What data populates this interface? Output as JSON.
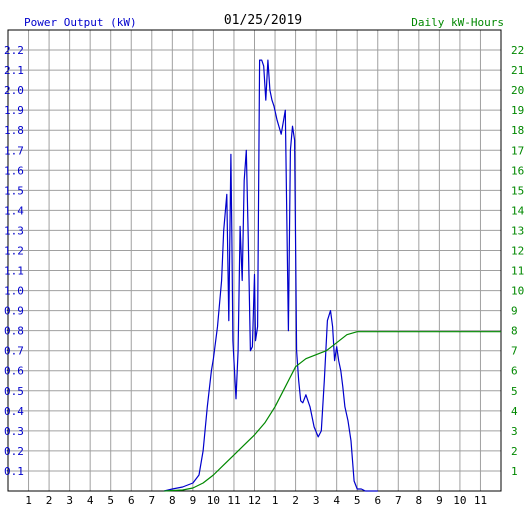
{
  "chart_data": {
    "type": "line",
    "title": "01/25/2019",
    "ylabel_left": "Power Output (kW)",
    "ylabel_right": "Daily kW-Hours",
    "colors": {
      "power": "#0000cc",
      "energy": "#008800",
      "grid": "#a0a0a0",
      "frame": "#000000"
    },
    "grid": true,
    "x_ticks": [
      "1",
      "2",
      "3",
      "4",
      "5",
      "6",
      "7",
      "8",
      "9",
      "10",
      "11",
      "12",
      "1",
      "2",
      "3",
      "4",
      "5",
      "6",
      "7",
      "8",
      "9",
      "10",
      "11"
    ],
    "xlim_hours": [
      0,
      24
    ],
    "ylim_left": [
      0,
      2.3
    ],
    "left_ticks": [
      "0.1",
      "0.2",
      "0.3",
      "0.4",
      "0.5",
      "0.6",
      "0.7",
      "0.8",
      "0.9",
      "1.0",
      "1.1",
      "1.2",
      "1.3",
      "1.4",
      "1.5",
      "1.6",
      "1.7",
      "1.8",
      "1.9",
      "2.0",
      "2.1",
      "2.2"
    ],
    "ylim_right": [
      0,
      23
    ],
    "right_ticks": [
      "1",
      "2",
      "3",
      "4",
      "5",
      "6",
      "7",
      "8",
      "9",
      "10",
      "11",
      "12",
      "13",
      "14",
      "15",
      "16",
      "17",
      "18",
      "19",
      "20",
      "21",
      "22"
    ],
    "series": [
      {
        "axis": "left",
        "hours": [
          7.6,
          8.0,
          8.5,
          9.0,
          9.3,
          9.5,
          9.7,
          9.9,
          10.0,
          10.2,
          10.4,
          10.5,
          10.65,
          10.75,
          10.85,
          10.9,
          10.95,
          11.1,
          11.2,
          11.3,
          11.4,
          11.5,
          11.6,
          11.7,
          11.8,
          11.9,
          12.0,
          12.05,
          12.15,
          12.25,
          12.35,
          12.45,
          12.55,
          12.65,
          12.75,
          12.85,
          12.95,
          13.1,
          13.3,
          13.5,
          13.65,
          13.75,
          13.85,
          13.95,
          14.05,
          14.15,
          14.25,
          14.35,
          14.5,
          14.7,
          14.9,
          15.1,
          15.25,
          15.4,
          15.55,
          15.7,
          15.8,
          15.9,
          16.0,
          16.1,
          16.2,
          16.3,
          16.4,
          16.55,
          16.7,
          16.85,
          17.0,
          17.2,
          17.4,
          17.6,
          17.8,
          18.0
        ],
        "values": [
          0.0,
          0.01,
          0.02,
          0.04,
          0.08,
          0.2,
          0.42,
          0.6,
          0.66,
          0.82,
          1.05,
          1.3,
          1.48,
          0.85,
          1.68,
          1.25,
          0.75,
          0.46,
          0.7,
          1.32,
          1.05,
          1.55,
          1.7,
          1.25,
          0.7,
          0.72,
          1.08,
          0.75,
          0.82,
          2.15,
          2.15,
          2.12,
          1.95,
          2.15,
          2.0,
          1.95,
          1.92,
          1.85,
          1.78,
          1.9,
          0.8,
          1.7,
          1.82,
          1.75,
          0.7,
          0.55,
          0.45,
          0.44,
          0.48,
          0.42,
          0.32,
          0.27,
          0.3,
          0.55,
          0.85,
          0.9,
          0.82,
          0.65,
          0.72,
          0.65,
          0.6,
          0.52,
          0.42,
          0.35,
          0.25,
          0.05,
          0.01,
          0.01,
          0.0,
          0.0,
          0.0,
          0.0
        ]
      },
      {
        "axis": "right",
        "hours": [
          7.6,
          8.5,
          9.0,
          9.5,
          10.0,
          10.5,
          11.0,
          11.5,
          12.0,
          12.5,
          13.0,
          13.5,
          14.0,
          14.5,
          15.0,
          15.5,
          16.0,
          16.5,
          17.0,
          18.0,
          20.0,
          24.0
        ],
        "values": [
          0.0,
          0.05,
          0.15,
          0.4,
          0.8,
          1.3,
          1.8,
          2.3,
          2.8,
          3.4,
          4.2,
          5.2,
          6.2,
          6.6,
          6.8,
          7.0,
          7.4,
          7.8,
          7.95,
          7.95,
          7.95,
          7.95
        ]
      }
    ]
  }
}
